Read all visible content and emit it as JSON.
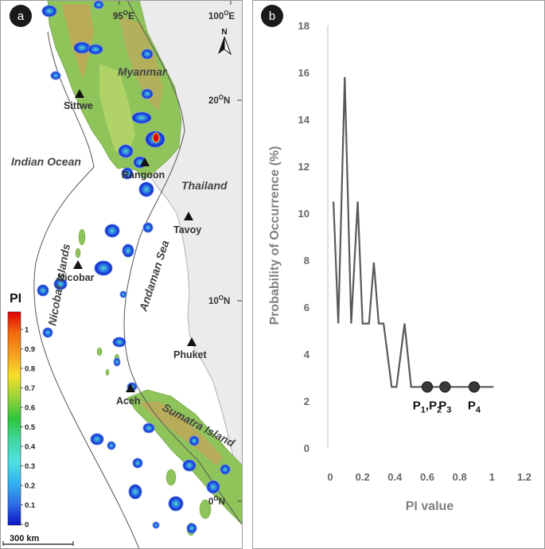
{
  "panel_a": {
    "badge": "a",
    "labels": {
      "myanmar": "Myanmar",
      "indian_ocean": "Indian Ocean",
      "thailand": "Thailand",
      "nicobar_islands": "Nicobar Islands",
      "andaman_sea": "Andaman Sea",
      "sumatra_island": "Sumatra Island"
    },
    "cities": [
      "Sittwe",
      "Rangoon",
      "Tavoy",
      "Nicobar",
      "Phuket",
      "Aceh"
    ],
    "coordinates": {
      "lon_95": {
        "base": "95",
        "sup": "O",
        "suffix": "E"
      },
      "lon_100": {
        "base": "100",
        "sup": "O",
        "suffix": "E"
      },
      "lat_20": {
        "base": "20",
        "sup": "O",
        "suffix": "N"
      },
      "lat_10": {
        "base": "10",
        "sup": "O",
        "suffix": "N"
      },
      "lat_0": {
        "base": "0",
        "sup": "O",
        "suffix": "N"
      }
    },
    "north_arrow_letter": "N",
    "scale_bar": "300 km",
    "legend": {
      "title": "PI",
      "ticks": [
        "1",
        "0.9",
        "0.8",
        "0.7",
        "0.6",
        "0.5",
        "0.4",
        "0.3",
        "0.2",
        "0.1",
        "0"
      ],
      "colors": [
        "#e00000",
        "#f23a10",
        "#f7701c",
        "#fbb040",
        "#f5e02a",
        "#9ad43a",
        "#2ec53a",
        "#52e0c8",
        "#30c4ef",
        "#2f7fe8",
        "#1d3ed8",
        "#0a14c8"
      ]
    }
  },
  "chart_data": {
    "badge": "b",
    "type": "line",
    "xlabel": "PI value",
    "ylabel": "Probability of Occurrence (%)",
    "xlim": [
      0,
      1.2
    ],
    "ylim": [
      0,
      18
    ],
    "xticks": [
      "0",
      "0.2",
      "0.4",
      "0.6",
      "0.8",
      "1",
      "1.2"
    ],
    "yticks": [
      "0",
      "2",
      "4",
      "6",
      "8",
      "10",
      "12",
      "14",
      "16",
      "18"
    ],
    "grid": false,
    "line_color": "#595959",
    "marker_color": "#3a3a3a",
    "x": [
      0.02,
      0.05,
      0.09,
      0.13,
      0.17,
      0.2,
      0.24,
      0.27,
      0.3,
      0.33,
      0.38,
      0.41,
      0.46,
      0.5,
      0.53,
      0.6,
      0.71,
      0.89,
      1.01
    ],
    "y": [
      10.5,
      5.3,
      15.8,
      5.3,
      10.5,
      5.3,
      5.3,
      7.9,
      5.3,
      5.3,
      2.6,
      2.6,
      5.3,
      2.6,
      2.6,
      2.6,
      2.6,
      2.6,
      2.6
    ],
    "points": [
      {
        "label": "P",
        "sub": "1",
        "sep": ",",
        "label2": "P",
        "sub2": "2",
        "x": 0.6,
        "y": 2.6
      },
      {
        "label": "P",
        "sub": "3",
        "x": 0.71,
        "y": 2.6
      },
      {
        "label": "P",
        "sub": "4",
        "x": 0.89,
        "y": 2.6
      }
    ]
  }
}
